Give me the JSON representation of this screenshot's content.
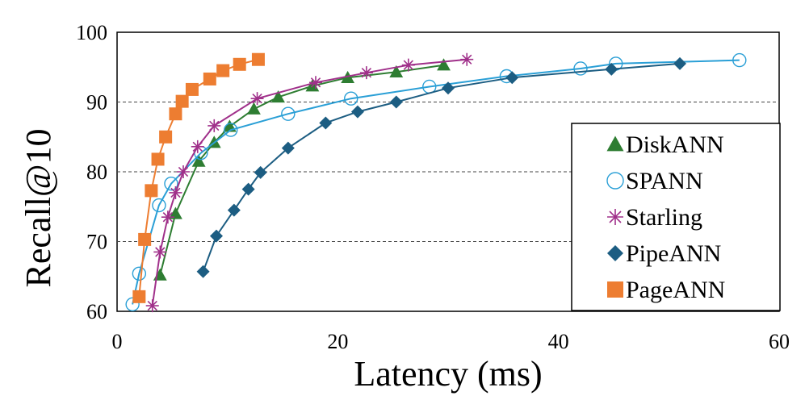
{
  "chart_data": {
    "type": "line",
    "title": "",
    "xlabel": "Latency (ms)",
    "ylabel": "Recall@10",
    "xlim": [
      0,
      60
    ],
    "ylim": [
      60,
      100
    ],
    "xticks": [
      0,
      20,
      40,
      60
    ],
    "yticks": [
      60,
      70,
      80,
      90,
      100
    ],
    "grid": "horizontal dashed at 70, 80, 90",
    "legend_position": "right",
    "series": [
      {
        "name": "DiskANN",
        "color": "#2e7d32",
        "marker": "triangle",
        "points": [
          [
            3.9,
            65.2
          ],
          [
            5.3,
            74.0
          ],
          [
            7.4,
            81.5
          ],
          [
            8.8,
            84.2
          ],
          [
            10.2,
            86.5
          ],
          [
            12.4,
            89.0
          ],
          [
            14.6,
            90.7
          ],
          [
            17.7,
            92.3
          ],
          [
            20.9,
            93.5
          ],
          [
            25.3,
            94.3
          ],
          [
            29.6,
            95.3
          ]
        ]
      },
      {
        "name": "SPANN",
        "color": "#2a9fd6",
        "marker": "open-circle",
        "points": [
          [
            1.4,
            61.0
          ],
          [
            2.0,
            65.4
          ],
          [
            3.8,
            75.2
          ],
          [
            4.9,
            78.3
          ],
          [
            7.6,
            82.7
          ],
          [
            10.3,
            86.0
          ],
          [
            15.5,
            88.3
          ],
          [
            21.2,
            90.5
          ],
          [
            28.3,
            92.2
          ],
          [
            35.3,
            93.7
          ],
          [
            42.0,
            94.8
          ],
          [
            45.2,
            95.5
          ],
          [
            56.4,
            96.0
          ]
        ]
      },
      {
        "name": "Starling",
        "color": "#a0308a",
        "marker": "asterisk",
        "points": [
          [
            3.2,
            60.8
          ],
          [
            3.9,
            68.5
          ],
          [
            4.6,
            73.5
          ],
          [
            5.3,
            77.0
          ],
          [
            6.0,
            80.0
          ],
          [
            7.3,
            83.6
          ],
          [
            8.8,
            86.6
          ],
          [
            12.7,
            90.5
          ],
          [
            18.0,
            92.8
          ],
          [
            22.6,
            94.2
          ],
          [
            26.4,
            95.3
          ],
          [
            31.7,
            96.1
          ]
        ]
      },
      {
        "name": "PipeANN",
        "color": "#1c5d82",
        "marker": "diamond",
        "points": [
          [
            7.8,
            65.7
          ],
          [
            9.0,
            70.8
          ],
          [
            10.6,
            74.5
          ],
          [
            11.9,
            77.5
          ],
          [
            13.0,
            79.9
          ],
          [
            15.5,
            83.4
          ],
          [
            18.9,
            87.0
          ],
          [
            21.8,
            88.6
          ],
          [
            25.3,
            90.0
          ],
          [
            30.0,
            92.0
          ],
          [
            35.8,
            93.5
          ],
          [
            44.8,
            94.7
          ],
          [
            51.0,
            95.5
          ]
        ]
      },
      {
        "name": "PageANN",
        "color": "#ed7d31",
        "marker": "square",
        "points": [
          [
            2.0,
            62.1
          ],
          [
            2.5,
            70.3
          ],
          [
            3.1,
            77.3
          ],
          [
            3.7,
            81.8
          ],
          [
            4.4,
            85.0
          ],
          [
            5.3,
            88.3
          ],
          [
            5.9,
            90.1
          ],
          [
            6.8,
            91.8
          ],
          [
            8.4,
            93.3
          ],
          [
            9.6,
            94.5
          ],
          [
            11.1,
            95.4
          ],
          [
            12.8,
            96.1
          ]
        ]
      }
    ]
  }
}
